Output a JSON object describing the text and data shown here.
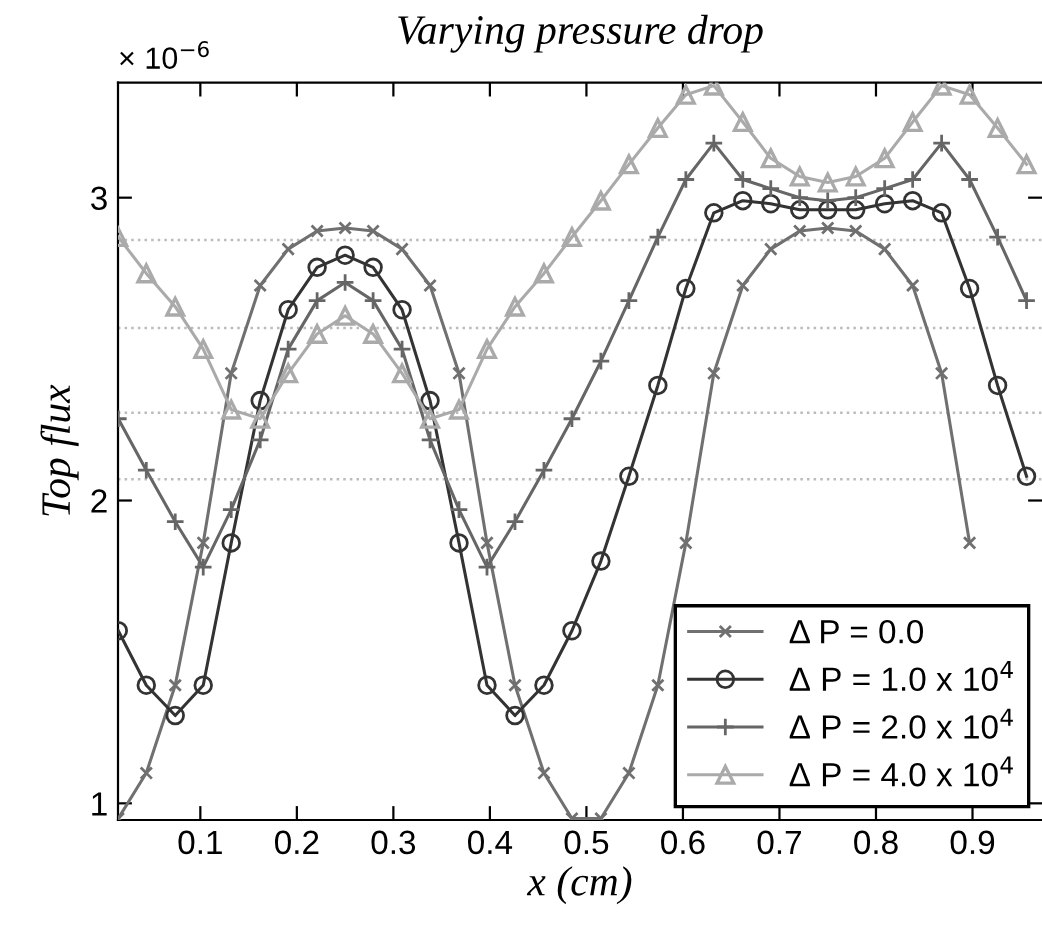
{
  "chart_data": {
    "type": "line",
    "title": "Varying pressure drop",
    "xlabel": "x (cm)",
    "ylabel": "Top flux",
    "annotations": [
      "× 10$^{−6}$"
    ],
    "x": [
      0.015,
      0.044,
      0.074,
      0.103,
      0.132,
      0.162,
      0.191,
      0.221,
      0.25,
      0.279,
      0.309,
      0.338,
      0.368,
      0.397,
      0.426,
      0.456,
      0.485,
      0.515,
      0.544,
      0.574,
      0.603,
      0.632,
      0.662,
      0.691,
      0.721,
      0.75,
      0.779,
      0.809,
      0.838,
      0.868,
      0.897,
      0.926,
      0.956
    ],
    "series": [
      {
        "name": "Δ P = 0.0",
        "color": "#707070",
        "marker": "cross",
        "values": [
          0.95,
          1.1,
          1.39,
          1.86,
          2.42,
          2.71,
          2.83,
          2.89,
          2.9,
          2.89,
          2.83,
          2.71,
          2.42,
          1.86,
          1.39,
          1.1,
          0.95,
          0.95,
          1.1,
          1.39,
          1.86,
          2.42,
          2.71,
          2.83,
          2.89,
          2.9,
          2.89,
          2.83,
          2.71,
          2.42,
          1.86,
          null,
          null
        ]
      },
      {
        "name": "Δ P = 1.0 x 10$^{4}$",
        "color": "#333333",
        "marker": "circle",
        "values": [
          1.57,
          1.39,
          1.29,
          1.39,
          1.86,
          2.33,
          2.63,
          2.77,
          2.81,
          2.77,
          2.63,
          2.33,
          1.86,
          1.39,
          1.29,
          1.39,
          1.57,
          1.8,
          2.08,
          2.38,
          2.7,
          2.95,
          2.99,
          2.98,
          2.96,
          2.96,
          2.96,
          2.98,
          2.99,
          2.95,
          2.7,
          2.38,
          2.08
        ]
      },
      {
        "name": "Δ P = 2.0 x 10$^{4}$",
        "color": "#666666",
        "marker": "plus",
        "values": [
          2.27,
          2.1,
          1.93,
          1.78,
          1.97,
          2.2,
          2.5,
          2.66,
          2.72,
          2.66,
          2.5,
          2.2,
          1.97,
          1.78,
          1.93,
          2.1,
          2.27,
          2.46,
          2.66,
          2.87,
          3.06,
          3.18,
          3.06,
          3.03,
          3.0,
          2.99,
          3.0,
          3.03,
          3.06,
          3.18,
          3.06,
          2.87,
          2.66
        ]
      },
      {
        "name": "Δ P = 4.0 x 10$^{4}$",
        "color": "#aaaaaa",
        "marker": "triangle",
        "values": [
          2.87,
          2.75,
          2.64,
          2.5,
          2.3,
          2.27,
          2.42,
          2.55,
          2.61,
          2.55,
          2.42,
          2.27,
          2.3,
          2.5,
          2.64,
          2.75,
          2.87,
          2.99,
          3.11,
          3.23,
          3.34,
          3.37,
          3.25,
          3.13,
          3.07,
          3.05,
          3.07,
          3.13,
          3.25,
          3.37,
          3.34,
          3.23,
          3.11
        ]
      }
    ],
    "xlim": [
      0.0147,
      0.972
    ],
    "ylim": [
      0.945,
      3.38
    ],
    "xticks": [
      0.1,
      0.2,
      0.3,
      0.4,
      0.5,
      0.6,
      0.7,
      0.8,
      0.9
    ],
    "yticks": [
      1,
      2,
      3
    ],
    "ref_lines": [
      {
        "axis": "y",
        "value": 2.86,
        "color": "#bbbbbb",
        "line_style": "dotted"
      },
      {
        "axis": "y",
        "value": 2.57,
        "color": "#bbbbbb",
        "line_style": "dotted"
      },
      {
        "axis": "y",
        "value": 2.29,
        "color": "#bbbbbb",
        "line_style": "dotted"
      },
      {
        "axis": "y",
        "value": 2.07,
        "color": "#bbbbbb",
        "line_style": "dotted"
      }
    ],
    "legend": "bottom right",
    "grid": false
  }
}
